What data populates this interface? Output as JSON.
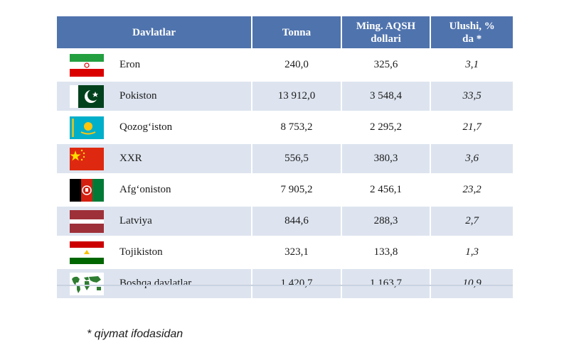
{
  "header": {
    "country": "Davlatlar",
    "tonnes": "Tonna",
    "usd": "Ming. AQSH dollari",
    "share": "Ulushi, % da *"
  },
  "rows": [
    {
      "country": "Eron",
      "flag": "iran-flag",
      "tonnes": "240,0",
      "usd": "325,6",
      "share": "3,1"
    },
    {
      "country": "Pokiston",
      "flag": "pakistan-flag",
      "tonnes": "13 912,0",
      "usd": "3 548,4",
      "share": "33,5"
    },
    {
      "country": "Qozog‘iston",
      "flag": "kazakhstan-flag",
      "tonnes": "8 753,2",
      "usd": "2 295,2",
      "share": "21,7"
    },
    {
      "country": "XXR",
      "flag": "china-flag",
      "tonnes": "556,5",
      "usd": "380,3",
      "share": "3,6"
    },
    {
      "country": "Afg‘oniston",
      "flag": "afghanistan-flag",
      "tonnes": "7 905,2",
      "usd": "2 456,1",
      "share": "23,2"
    },
    {
      "country": "Latviya",
      "flag": "latvia-flag",
      "tonnes": "844,6",
      "usd": "288,3",
      "share": "2,7"
    },
    {
      "country": "Tojikiston",
      "flag": "tajikistan-flag",
      "tonnes": "323,1",
      "usd": "133,8",
      "share": "1,3"
    },
    {
      "country": "Boshqa davlatlar",
      "flag": "world-map-icon",
      "tonnes": "1 420,7",
      "usd": "1 163,7",
      "share": "10,9"
    }
  ],
  "footnote": "* qiymat ifodasidan",
  "colors": {
    "header_bg": "#4f73ad",
    "row_alt": "#dde4ef"
  }
}
